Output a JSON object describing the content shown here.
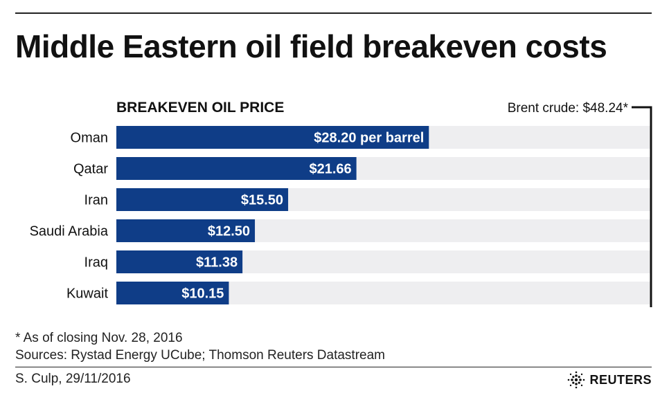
{
  "title": "Middle Eastern oil field breakeven costs",
  "chart_data": {
    "type": "bar",
    "orientation": "horizontal",
    "subtitle": "BREAKEVEN OIL PRICE",
    "categories": [
      "Oman",
      "Qatar",
      "Iran",
      "Saudi Arabia",
      "Iraq",
      "Kuwait"
    ],
    "values": [
      28.2,
      21.66,
      15.5,
      12.5,
      11.38,
      10.15
    ],
    "value_labels": [
      "$28.20 per barrel",
      "$21.66",
      "$15.50",
      "$12.50",
      "$11.38",
      "$10.15"
    ],
    "xlim": [
      0,
      48.24
    ],
    "reference_value": 48.24,
    "reference_label": "Brent crude: $48.24*",
    "bar_color": "#0f3d87",
    "track_color": "#eeeef0",
    "grid": false,
    "legend": "none"
  },
  "footnote": "* As of closing Nov. 28, 2016",
  "sources": "Sources:  Rystad Energy UCube; Thomson Reuters Datastream",
  "credit": "S. Culp,  29/11/2016",
  "logo": "REUTERS"
}
